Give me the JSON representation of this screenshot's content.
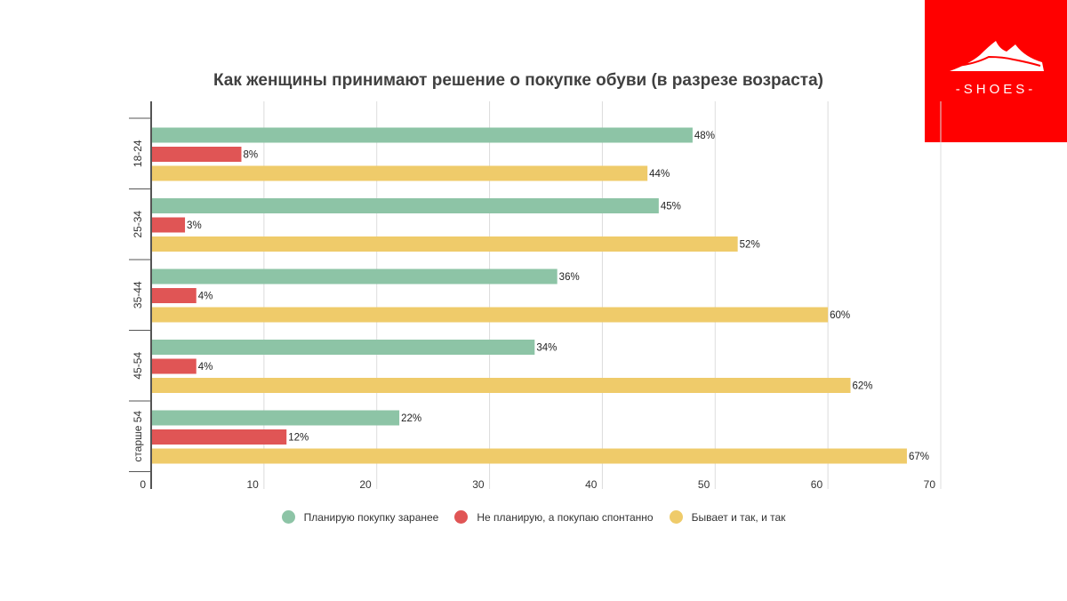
{
  "brand": {
    "logo_text": "-SHOES-",
    "logo_bg": "#ff0000"
  },
  "chart_data": {
    "type": "bar",
    "orientation": "horizontal",
    "title": "Как женщины принимают решение о покупке обуви (в разрезе возраста)",
    "xlabel": "",
    "ylabel": "",
    "categories": [
      "18-24",
      "25-34",
      "35-44",
      "45-54",
      "старше 54"
    ],
    "series": [
      {
        "name": "Планирую покупку заранее",
        "color": "#8dc4a6",
        "values": [
          48,
          45,
          36,
          34,
          22
        ]
      },
      {
        "name": "Не планирую, а покупаю спонтанно",
        "color": "#e05555",
        "values": [
          8,
          3,
          4,
          4,
          12
        ]
      },
      {
        "name": "Бывает и так, и так",
        "color": "#efcb6a",
        "values": [
          44,
          52,
          60,
          62,
          67
        ]
      }
    ],
    "data_label_suffix": "%",
    "xlim": [
      0,
      70
    ],
    "xticks": [
      0,
      10,
      20,
      30,
      40,
      50,
      60,
      70
    ],
    "grid": true,
    "legend_position": "bottom"
  }
}
